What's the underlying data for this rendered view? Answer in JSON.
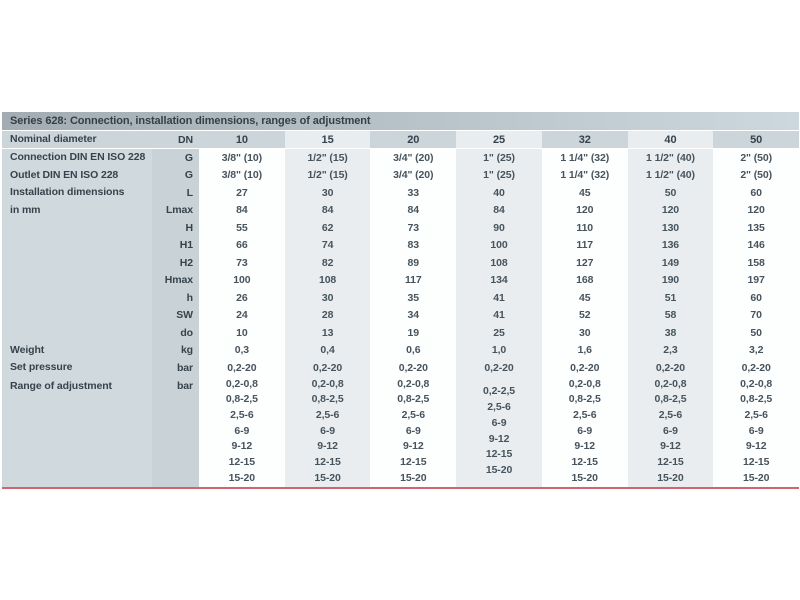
{
  "table": {
    "title": "Series 628: Connection, installation dimensions, ranges of adjustment",
    "header": {
      "label": "Nominal diameter",
      "unit": "DN",
      "columns": [
        "10",
        "15",
        "20",
        "25",
        "32",
        "40",
        "50"
      ]
    },
    "rows": [
      {
        "label": "Connection DIN EN ISO 228",
        "unit": "G",
        "values": [
          "3/8\" (10)",
          "1/2\" (15)",
          "3/4\" (20)",
          "1\" (25)",
          "1 1/4\" (32)",
          "1 1/2\" (40)",
          "2\" (50)"
        ]
      },
      {
        "label": "Outlet DIN EN ISO 228",
        "unit": "G",
        "values": [
          "3/8\" (10)",
          "1/2\" (15)",
          "3/4\" (20)",
          "1\" (25)",
          "1 1/4\" (32)",
          "1 1/2\" (40)",
          "2\" (50)"
        ]
      },
      {
        "label": [
          "Installation dimensions",
          "in mm"
        ],
        "unit": "L",
        "values": [
          "27",
          "30",
          "33",
          "40",
          "45",
          "50",
          "60"
        ]
      },
      {
        "label": "",
        "unit": "Lmax",
        "values": [
          "84",
          "84",
          "84",
          "84",
          "120",
          "120",
          "120"
        ]
      },
      {
        "label": "",
        "unit": "H",
        "values": [
          "55",
          "62",
          "73",
          "90",
          "110",
          "130",
          "135"
        ]
      },
      {
        "label": "",
        "unit": "H1",
        "values": [
          "66",
          "74",
          "83",
          "100",
          "117",
          "136",
          "146"
        ]
      },
      {
        "label": "",
        "unit": "H2",
        "values": [
          "73",
          "82",
          "89",
          "108",
          "127",
          "149",
          "158"
        ]
      },
      {
        "label": "",
        "unit": "Hmax",
        "values": [
          "100",
          "108",
          "117",
          "134",
          "168",
          "190",
          "197"
        ]
      },
      {
        "label": "",
        "unit": "h",
        "values": [
          "26",
          "30",
          "35",
          "41",
          "45",
          "51",
          "60"
        ]
      },
      {
        "label": "",
        "unit": "SW",
        "values": [
          "24",
          "28",
          "34",
          "41",
          "52",
          "58",
          "70"
        ]
      },
      {
        "label": "",
        "unit": "do",
        "values": [
          "10",
          "13",
          "19",
          "25",
          "30",
          "38",
          "50"
        ]
      },
      {
        "label": "Weight",
        "unit": "kg",
        "values": [
          "0,3",
          "0,4",
          "0,6",
          "1,0",
          "1,6",
          "2,3",
          "3,2"
        ]
      },
      {
        "label": "Set pressure",
        "unit": "bar",
        "values": [
          "0,2-20",
          "0,2-20",
          "0,2-20",
          "0,2-20",
          "0,2-20",
          "0,2-20",
          "0,2-20"
        ]
      }
    ],
    "adjustment_row": {
      "label": "Range of adjustment",
      "unit": "bar",
      "values": [
        [
          "0,2-0,8",
          "0,8-2,5",
          "2,5-6",
          "6-9",
          "9-12",
          "12-15",
          "15-20"
        ],
        [
          "0,2-0,8",
          "0,8-2,5",
          "2,5-6",
          "6-9",
          "9-12",
          "12-15",
          "15-20"
        ],
        [
          "0,2-0,8",
          "0,8-2,5",
          "2,5-6",
          "6-9",
          "9-12",
          "12-15",
          "15-20"
        ],
        [
          "0,2-2,5",
          "2,5-6",
          "6-9",
          "9-12",
          "12-15",
          "15-20"
        ],
        [
          "0,2-0,8",
          "0,8-2,5",
          "2,5-6",
          "6-9",
          "9-12",
          "12-15",
          "15-20"
        ],
        [
          "0,2-0,8",
          "0,8-2,5",
          "2,5-6",
          "6-9",
          "9-12",
          "12-15",
          "15-20"
        ],
        [
          "0,2-0,8",
          "0,8-2,5",
          "2,5-6",
          "6-9",
          "9-12",
          "12-15",
          "15-20"
        ]
      ]
    },
    "colors": {
      "title_bg_left": "#a2acb2",
      "title_bg_right": "#ccd8de",
      "header_bg": "#cbd5da",
      "stripe_bg": "#e9edf0",
      "accent_line": "#d4636f"
    }
  }
}
